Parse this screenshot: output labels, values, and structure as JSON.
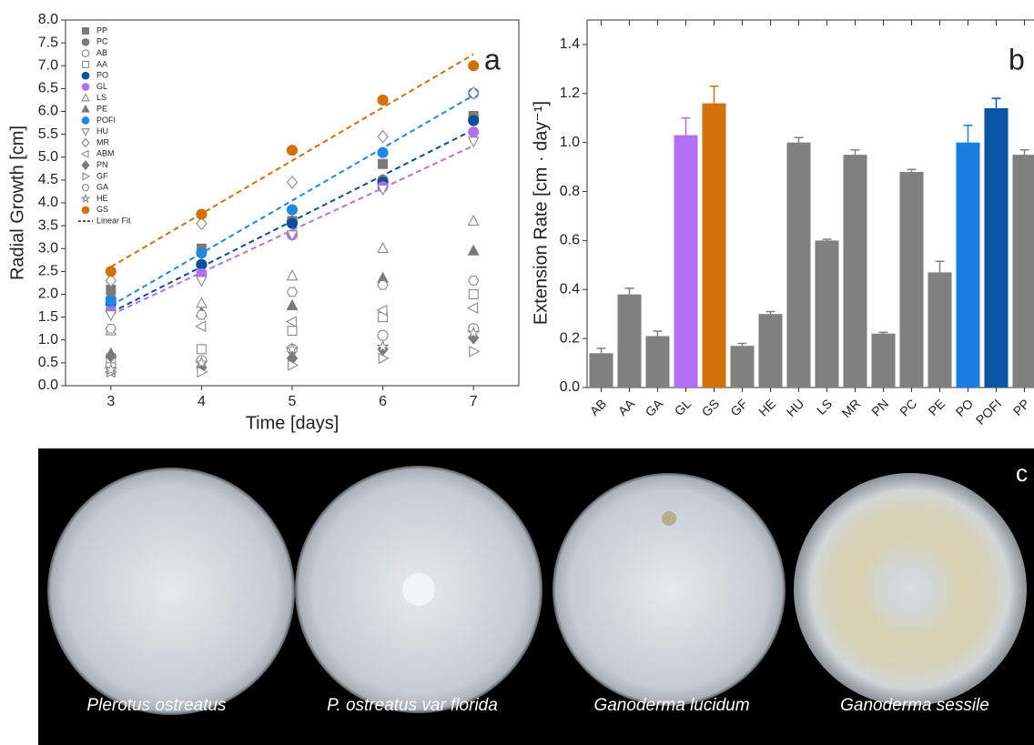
{
  "chart_data": [
    {
      "type": "scatter",
      "panel_label": "a",
      "x_label": "Time [days]",
      "y_label": "Radial Growth [cm]",
      "x": [
        3,
        4,
        5,
        6,
        7
      ],
      "xlim": [
        2.5,
        7.5
      ],
      "xticks": [
        3,
        4,
        5,
        6,
        7
      ],
      "ylim": [
        0,
        8
      ],
      "yticks": [
        {
          "value": 0,
          "label": "0.0"
        },
        {
          "value": 0.5,
          "label": "0.5"
        },
        {
          "value": 1,
          "label": "1.0"
        },
        {
          "value": 1.5,
          "label": "1.5"
        },
        {
          "value": 2,
          "label": "2.0"
        },
        {
          "value": 2.5,
          "label": "2.5"
        },
        {
          "value": 3,
          "label": "3.0"
        },
        {
          "value": 3.5,
          "label": "3.5"
        },
        {
          "value": 4,
          "label": "4.0"
        },
        {
          "value": 4.5,
          "label": "4.5"
        },
        {
          "value": 5,
          "label": "5.0"
        },
        {
          "value": 5.5,
          "label": "5.5"
        },
        {
          "value": 6,
          "label": "6.0"
        },
        {
          "value": 6.5,
          "label": "6.5"
        },
        {
          "value": 7,
          "label": "7.0"
        },
        {
          "value": 7.5,
          "label": "7.5"
        },
        {
          "value": 8,
          "label": "8.0"
        }
      ],
      "series": [
        {
          "name": "PP",
          "color": "#7a7a7a",
          "marker": "square",
          "filled": true,
          "values": [
            2.1,
            3.0,
            3.6,
            4.85,
            5.9
          ]
        },
        {
          "name": "PC",
          "color": "#7a7a7a",
          "marker": "circle",
          "filled": true,
          "values": [
            1.9,
            2.65,
            3.6,
            4.5,
            5.85
          ]
        },
        {
          "name": "AB",
          "color": "#8a8a8a",
          "marker": "circle",
          "filled": false,
          "values": [
            0.45,
            0.55,
            0.8,
            1.1,
            1.25
          ]
        },
        {
          "name": "AA",
          "color": "#8a8a8a",
          "marker": "square",
          "filled": false,
          "values": [
            0.6,
            0.8,
            1.2,
            1.5,
            2.0
          ]
        },
        {
          "name": "PO",
          "color": "#0a4ea0",
          "marker": "circle",
          "filled": true,
          "values": [
            1.8,
            2.65,
            3.55,
            4.45,
            5.8
          ]
        },
        {
          "name": "GL",
          "color": "#b270f0",
          "marker": "circle",
          "filled": true,
          "values": [
            1.65,
            2.45,
            3.3,
            4.35,
            5.55
          ]
        },
        {
          "name": "LS",
          "color": "#8a8a8a",
          "marker": "triangle-up",
          "filled": false,
          "values": [
            1.2,
            1.8,
            2.4,
            3.0,
            3.6
          ]
        },
        {
          "name": "PE",
          "color": "#7a7a7a",
          "marker": "triangle-up",
          "filled": true,
          "values": [
            0.7,
            1.6,
            1.75,
            2.35,
            2.95
          ]
        },
        {
          "name": "POFI",
          "color": "#1e88e5",
          "marker": "circle",
          "filled": true,
          "values": [
            1.85,
            2.9,
            3.85,
            5.1,
            6.4
          ]
        },
        {
          "name": "HU",
          "color": "#8a8a8a",
          "marker": "triangle-down",
          "filled": false,
          "values": [
            1.55,
            2.3,
            3.3,
            4.3,
            5.35
          ]
        },
        {
          "name": "MR",
          "color": "#8a8a8a",
          "marker": "diamond",
          "filled": false,
          "values": [
            2.3,
            3.55,
            4.45,
            5.45,
            6.4
          ]
        },
        {
          "name": "ABM",
          "color": "#8a8a8a",
          "marker": "triangle-left",
          "filled": false,
          "values": [
            0.3,
            1.3,
            1.4,
            1.65,
            1.7
          ]
        },
        {
          "name": "PN",
          "color": "#7a7a7a",
          "marker": "diamond",
          "filled": true,
          "values": [
            0.65,
            0.4,
            0.6,
            0.8,
            1.05
          ]
        },
        {
          "name": "GF",
          "color": "#8a8a8a",
          "marker": "triangle-right",
          "filled": false,
          "values": [
            0.3,
            0.3,
            0.45,
            0.6,
            0.75
          ]
        },
        {
          "name": "GA",
          "color": "#8a8a8a",
          "marker": "hexagon",
          "filled": false,
          "values": [
            1.25,
            1.55,
            2.05,
            2.2,
            2.3
          ]
        },
        {
          "name": "HE",
          "color": "#8a8a8a",
          "marker": "star",
          "filled": false,
          "values": [
            0.35,
            0.5,
            0.8,
            0.85,
            1.15
          ]
        },
        {
          "name": "GS",
          "color": "#d2700a",
          "marker": "circle",
          "filled": true,
          "values": [
            2.5,
            3.75,
            5.15,
            6.25,
            7.0
          ]
        }
      ],
      "fit": {
        "name": "Linear Fit",
        "color": "#222222",
        "lines": [
          {
            "color": "#d2700a",
            "x": [
              3,
              7
            ],
            "values": [
              2.6,
              7.25
            ]
          },
          {
            "color": "#1e88e5",
            "x": [
              3,
              7
            ],
            "values": [
              1.75,
              6.35
            ]
          },
          {
            "color": "#0a4ea0",
            "x": [
              3,
              7
            ],
            "values": [
              1.6,
              5.6
            ]
          },
          {
            "color": "#b270f0",
            "x": [
              3,
              7
            ],
            "values": [
              1.55,
              5.25
            ]
          }
        ]
      }
    },
    {
      "type": "bar",
      "panel_label": "b",
      "y_label": "Extension Rate [cm · day⁻¹]",
      "categories": [
        "AB",
        "AA",
        "GA",
        "GL",
        "GS",
        "GF",
        "HE",
        "HU",
        "LS",
        "MR",
        "PN",
        "PC",
        "PE",
        "PO",
        "POFI",
        "PP"
      ],
      "values": [
        0.14,
        0.38,
        0.21,
        1.03,
        1.16,
        0.17,
        0.3,
        1.0,
        0.6,
        0.95,
        0.22,
        0.88,
        0.47,
        1.0,
        1.14,
        0.95
      ],
      "errors": [
        0.02,
        0.025,
        0.02,
        0.07,
        0.07,
        0.01,
        0.01,
        0.02,
        0.005,
        0.02,
        0.005,
        0.01,
        0.045,
        0.07,
        0.04,
        0.02
      ],
      "colors": [
        "#808080",
        "#808080",
        "#808080",
        "#b46ef5",
        "#d4720a",
        "#808080",
        "#808080",
        "#808080",
        "#808080",
        "#808080",
        "#808080",
        "#808080",
        "#808080",
        "#1a7de0",
        "#0a55a5",
        "#808080"
      ],
      "ylim": [
        0,
        1.5
      ],
      "yticks": [
        {
          "value": 0,
          "label": "0.0"
        },
        {
          "value": 0.2,
          "label": "0.2"
        },
        {
          "value": 0.4,
          "label": "0.4"
        },
        {
          "value": 0.6,
          "label": "0.6"
        },
        {
          "value": 0.8,
          "label": "0.8"
        },
        {
          "value": 1,
          "label": "1.0"
        },
        {
          "value": 1.2,
          "label": "1.2"
        },
        {
          "value": 1.4,
          "label": "1.4"
        }
      ]
    }
  ],
  "photo_panel": {
    "label": "c",
    "captions": [
      "Plerotus ostreatus",
      "P. ostreatus var florida",
      "Ganoderma lucidum",
      "Ganoderma sessile"
    ]
  }
}
